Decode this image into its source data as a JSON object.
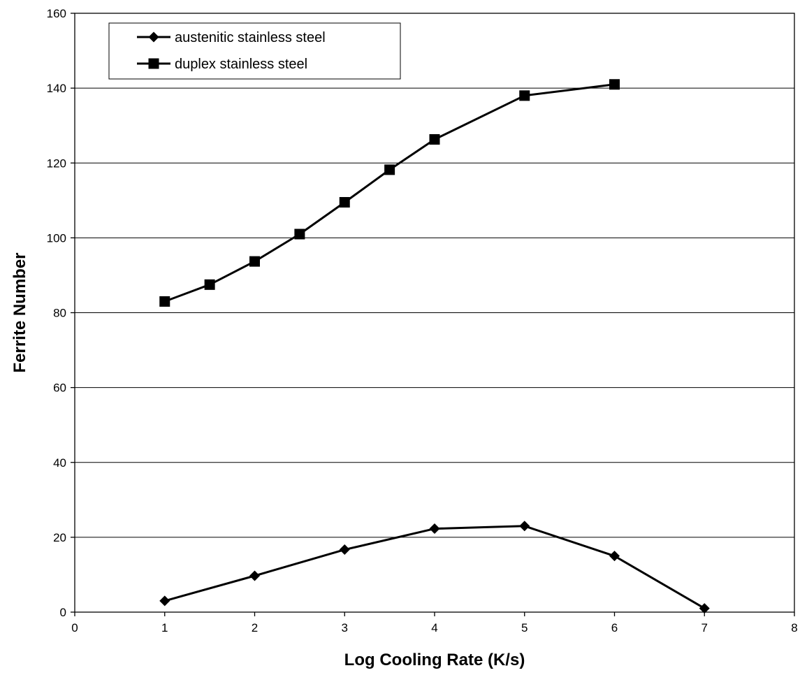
{
  "chart_data": {
    "type": "line",
    "title": "",
    "xlabel": "Log Cooling Rate (K/s)",
    "ylabel": "Ferrite Number",
    "xlim": [
      0,
      8
    ],
    "ylim": [
      0,
      160
    ],
    "x_ticks": [
      0,
      1,
      2,
      3,
      4,
      5,
      6,
      7,
      8
    ],
    "y_ticks": [
      0,
      20,
      40,
      60,
      80,
      100,
      120,
      140,
      160
    ],
    "x_tick_labels": [
      "0",
      "1",
      "2",
      "3",
      "4",
      "5",
      "6",
      "7",
      "8"
    ],
    "y_tick_labels": [
      "0",
      "20",
      "40",
      "60",
      "80",
      "100",
      "120",
      "140",
      "160"
    ],
    "grid": "horizontal",
    "legend_position": "top-left",
    "series": [
      {
        "name": "austenitic stainless steel",
        "marker": "diamond",
        "color": "#000000",
        "points": [
          [
            1,
            3
          ],
          [
            2,
            9.7
          ],
          [
            3,
            16.7
          ],
          [
            4,
            22.3
          ],
          [
            5,
            23
          ],
          [
            6,
            15
          ],
          [
            7,
            1
          ]
        ]
      },
      {
        "name": "duplex stainless steel",
        "marker": "square",
        "color": "#000000",
        "points": [
          [
            1,
            83
          ],
          [
            1.5,
            87.5
          ],
          [
            2,
            93.7
          ],
          [
            2.5,
            101
          ],
          [
            3,
            109.5
          ],
          [
            3.5,
            118.2
          ],
          [
            4,
            126.3
          ],
          [
            5,
            138
          ],
          [
            6,
            141
          ]
        ]
      }
    ]
  }
}
